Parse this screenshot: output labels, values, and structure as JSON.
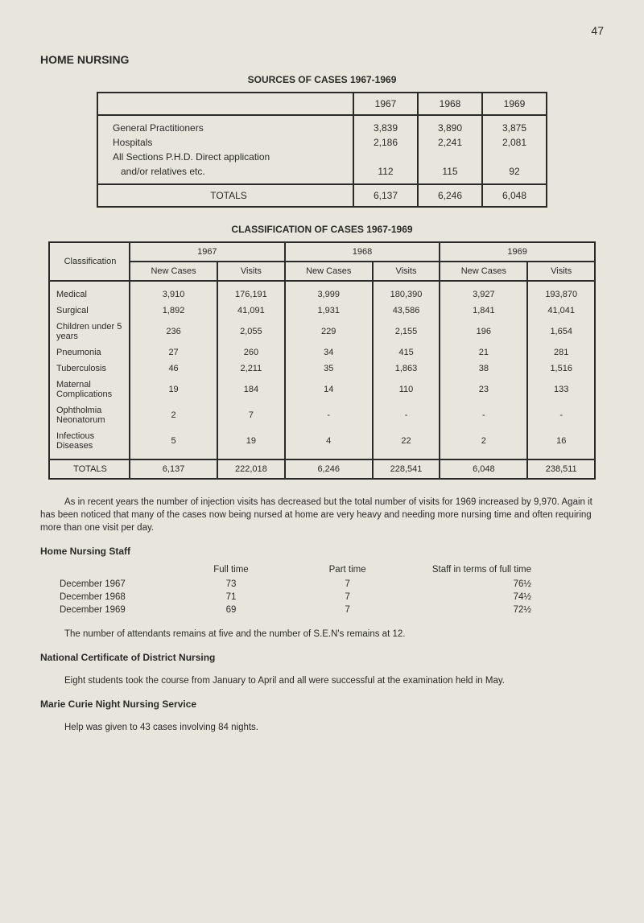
{
  "page_number": "47",
  "heading_main": "HOME NURSING",
  "table1": {
    "title": "SOURCES OF CASES 1967-1969",
    "years": [
      "1967",
      "1968",
      "1969"
    ],
    "rows": [
      {
        "label": "General Practitioners",
        "vals": [
          "3,839",
          "3,890",
          "3,875"
        ]
      },
      {
        "label": "Hospitals",
        "vals": [
          "2,186",
          "2,241",
          "2,081"
        ]
      },
      {
        "label": "All Sections P.H.D. Direct application",
        "vals": [
          "",
          "",
          ""
        ]
      },
      {
        "label": "   and/or relatives etc.",
        "vals": [
          "112",
          "115",
          "92"
        ]
      }
    ],
    "totals": {
      "label": "TOTALS",
      "vals": [
        "6,137",
        "6,246",
        "6,048"
      ]
    }
  },
  "table2": {
    "title": "CLASSIFICATION OF CASES 1967-1969",
    "col_class": "Classification",
    "years": [
      "1967",
      "1968",
      "1969"
    ],
    "sub": [
      "New Cases",
      "Visits"
    ],
    "rows": [
      {
        "label": "Medical",
        "vals": [
          "3,910",
          "176,191",
          "3,999",
          "180,390",
          "3,927",
          "193,870"
        ]
      },
      {
        "label": "Surgical",
        "vals": [
          "1,892",
          "41,091",
          "1,931",
          "43,586",
          "1,841",
          "41,041"
        ]
      },
      {
        "label": "Children under 5 years",
        "vals": [
          "236",
          "2,055",
          "229",
          "2,155",
          "196",
          "1,654"
        ]
      },
      {
        "label": "Pneumonia",
        "vals": [
          "27",
          "260",
          "34",
          "415",
          "21",
          "281"
        ]
      },
      {
        "label": "Tuberculosis",
        "vals": [
          "46",
          "2,211",
          "35",
          "1,863",
          "38",
          "1,516"
        ]
      },
      {
        "label": "Maternal Complications",
        "vals": [
          "19",
          "184",
          "14",
          "110",
          "23",
          "133"
        ]
      },
      {
        "label": "Ophtholmia Neonatorum",
        "vals": [
          "2",
          "7",
          "-",
          "-",
          "-",
          "-"
        ]
      },
      {
        "label": "Infectious Diseases",
        "vals": [
          "5",
          "19",
          "4",
          "22",
          "2",
          "16"
        ]
      }
    ],
    "totals": {
      "label": "TOTALS",
      "vals": [
        "6,137",
        "222,018",
        "6,246",
        "228,541",
        "6,048",
        "238,511"
      ]
    }
  },
  "para1": "As in recent years the number of injection visits has decreased but the total number of visits for 1969 increased by 9,970. Again it has been noticed that many of the cases now being nursed at home are very heavy and needing more nursing time and often requiring more than one visit per day.",
  "staff": {
    "heading": "Home Nursing Staff",
    "cols": [
      "",
      "Full time",
      "Part time",
      "Staff in terms of full time"
    ],
    "rows": [
      {
        "label": "December 1967",
        "full": "73",
        "part": "7",
        "terms": "76½"
      },
      {
        "label": "December 1968",
        "full": "71",
        "part": "7",
        "terms": "74½"
      },
      {
        "label": "December 1969",
        "full": "69",
        "part": "7",
        "terms": "72½"
      }
    ],
    "note": "The number of attendants remains at five and the number of S.E.N's remains at 12."
  },
  "cert": {
    "heading": "National Certificate of District Nursing",
    "text": "Eight students took the course from January to April and all were successful at the examination held in May."
  },
  "marie": {
    "heading": "Marie Curie Night Nursing Service",
    "text": "Help was given to 43 cases involving 84 nights."
  }
}
